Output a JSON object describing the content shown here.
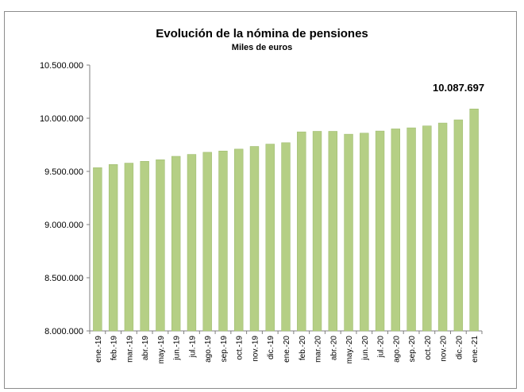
{
  "chart_data": {
    "type": "bar",
    "title": "Evolución de la nómina de pensiones",
    "subtitle": "Miles de euros",
    "xlabel": "",
    "ylabel": "",
    "ylim": [
      8000000,
      10500000
    ],
    "yticks": [
      8000000,
      8500000,
      9000000,
      9500000,
      10000000,
      10500000
    ],
    "ytick_labels": [
      "8.000.000",
      "8.500.000",
      "9.000.000",
      "9.500.000",
      "10.000.000",
      "10.500.000"
    ],
    "categories": [
      "ene.-19",
      "feb.-19",
      "mar.-19",
      "abr.-19",
      "may.-19",
      "jun.-19",
      "jul.-19",
      "ago.-19",
      "sep.-19",
      "oct.-19",
      "nov.-19",
      "dic.-19",
      "ene.-20",
      "feb.-20",
      "mar.-20",
      "abr.-20",
      "may.-20",
      "jun.-20",
      "jul.-20",
      "ago.-20",
      "sep.-20",
      "oct.-20",
      "nov.-20",
      "dic.-20",
      "ene.-21"
    ],
    "values": [
      9535000,
      9565000,
      9578000,
      9595000,
      9610000,
      9642000,
      9660000,
      9680000,
      9692000,
      9710000,
      9735000,
      9757000,
      9770000,
      9872000,
      9877000,
      9877000,
      9850000,
      9860000,
      9880000,
      9900000,
      9910000,
      9928000,
      9955000,
      9985000,
      10087697
    ],
    "annotations": [
      {
        "category": "ene.-21",
        "text": "10.087.697"
      }
    ],
    "grid": false,
    "legend": "none",
    "bar_color": "#b5cf85",
    "bar_edge_color": "#9ab86a"
  }
}
